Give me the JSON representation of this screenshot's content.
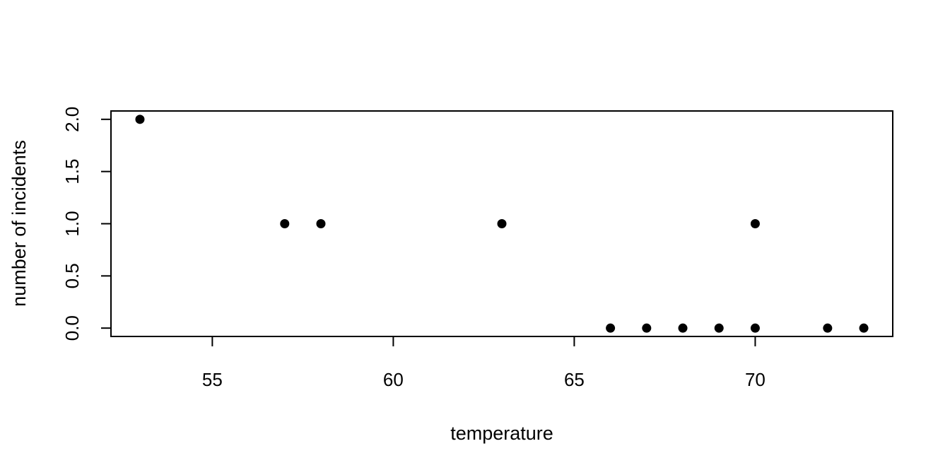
{
  "chart_data": {
    "type": "scatter",
    "title": "",
    "xlabel": "temperature",
    "ylabel": "number of incidents",
    "xlim": [
      52.2,
      73.8
    ],
    "ylim": [
      -0.08,
      2.08
    ],
    "x_ticks": [
      55,
      60,
      65,
      70
    ],
    "x_tick_labels": [
      "55",
      "60",
      "65",
      "70"
    ],
    "y_ticks": [
      0.0,
      0.5,
      1.0,
      1.5,
      2.0
    ],
    "y_tick_labels": [
      "0.0",
      "0.5",
      "1.0",
      "1.5",
      "2.0"
    ],
    "grid": false,
    "marker_color": "#000000",
    "points": [
      {
        "x": 53,
        "y": 2
      },
      {
        "x": 57,
        "y": 1
      },
      {
        "x": 58,
        "y": 1
      },
      {
        "x": 63,
        "y": 1
      },
      {
        "x": 66,
        "y": 0
      },
      {
        "x": 67,
        "y": 0
      },
      {
        "x": 68,
        "y": 0
      },
      {
        "x": 69,
        "y": 0
      },
      {
        "x": 70,
        "y": 0
      },
      {
        "x": 70,
        "y": 1
      },
      {
        "x": 72,
        "y": 0
      },
      {
        "x": 73,
        "y": 0
      }
    ]
  }
}
